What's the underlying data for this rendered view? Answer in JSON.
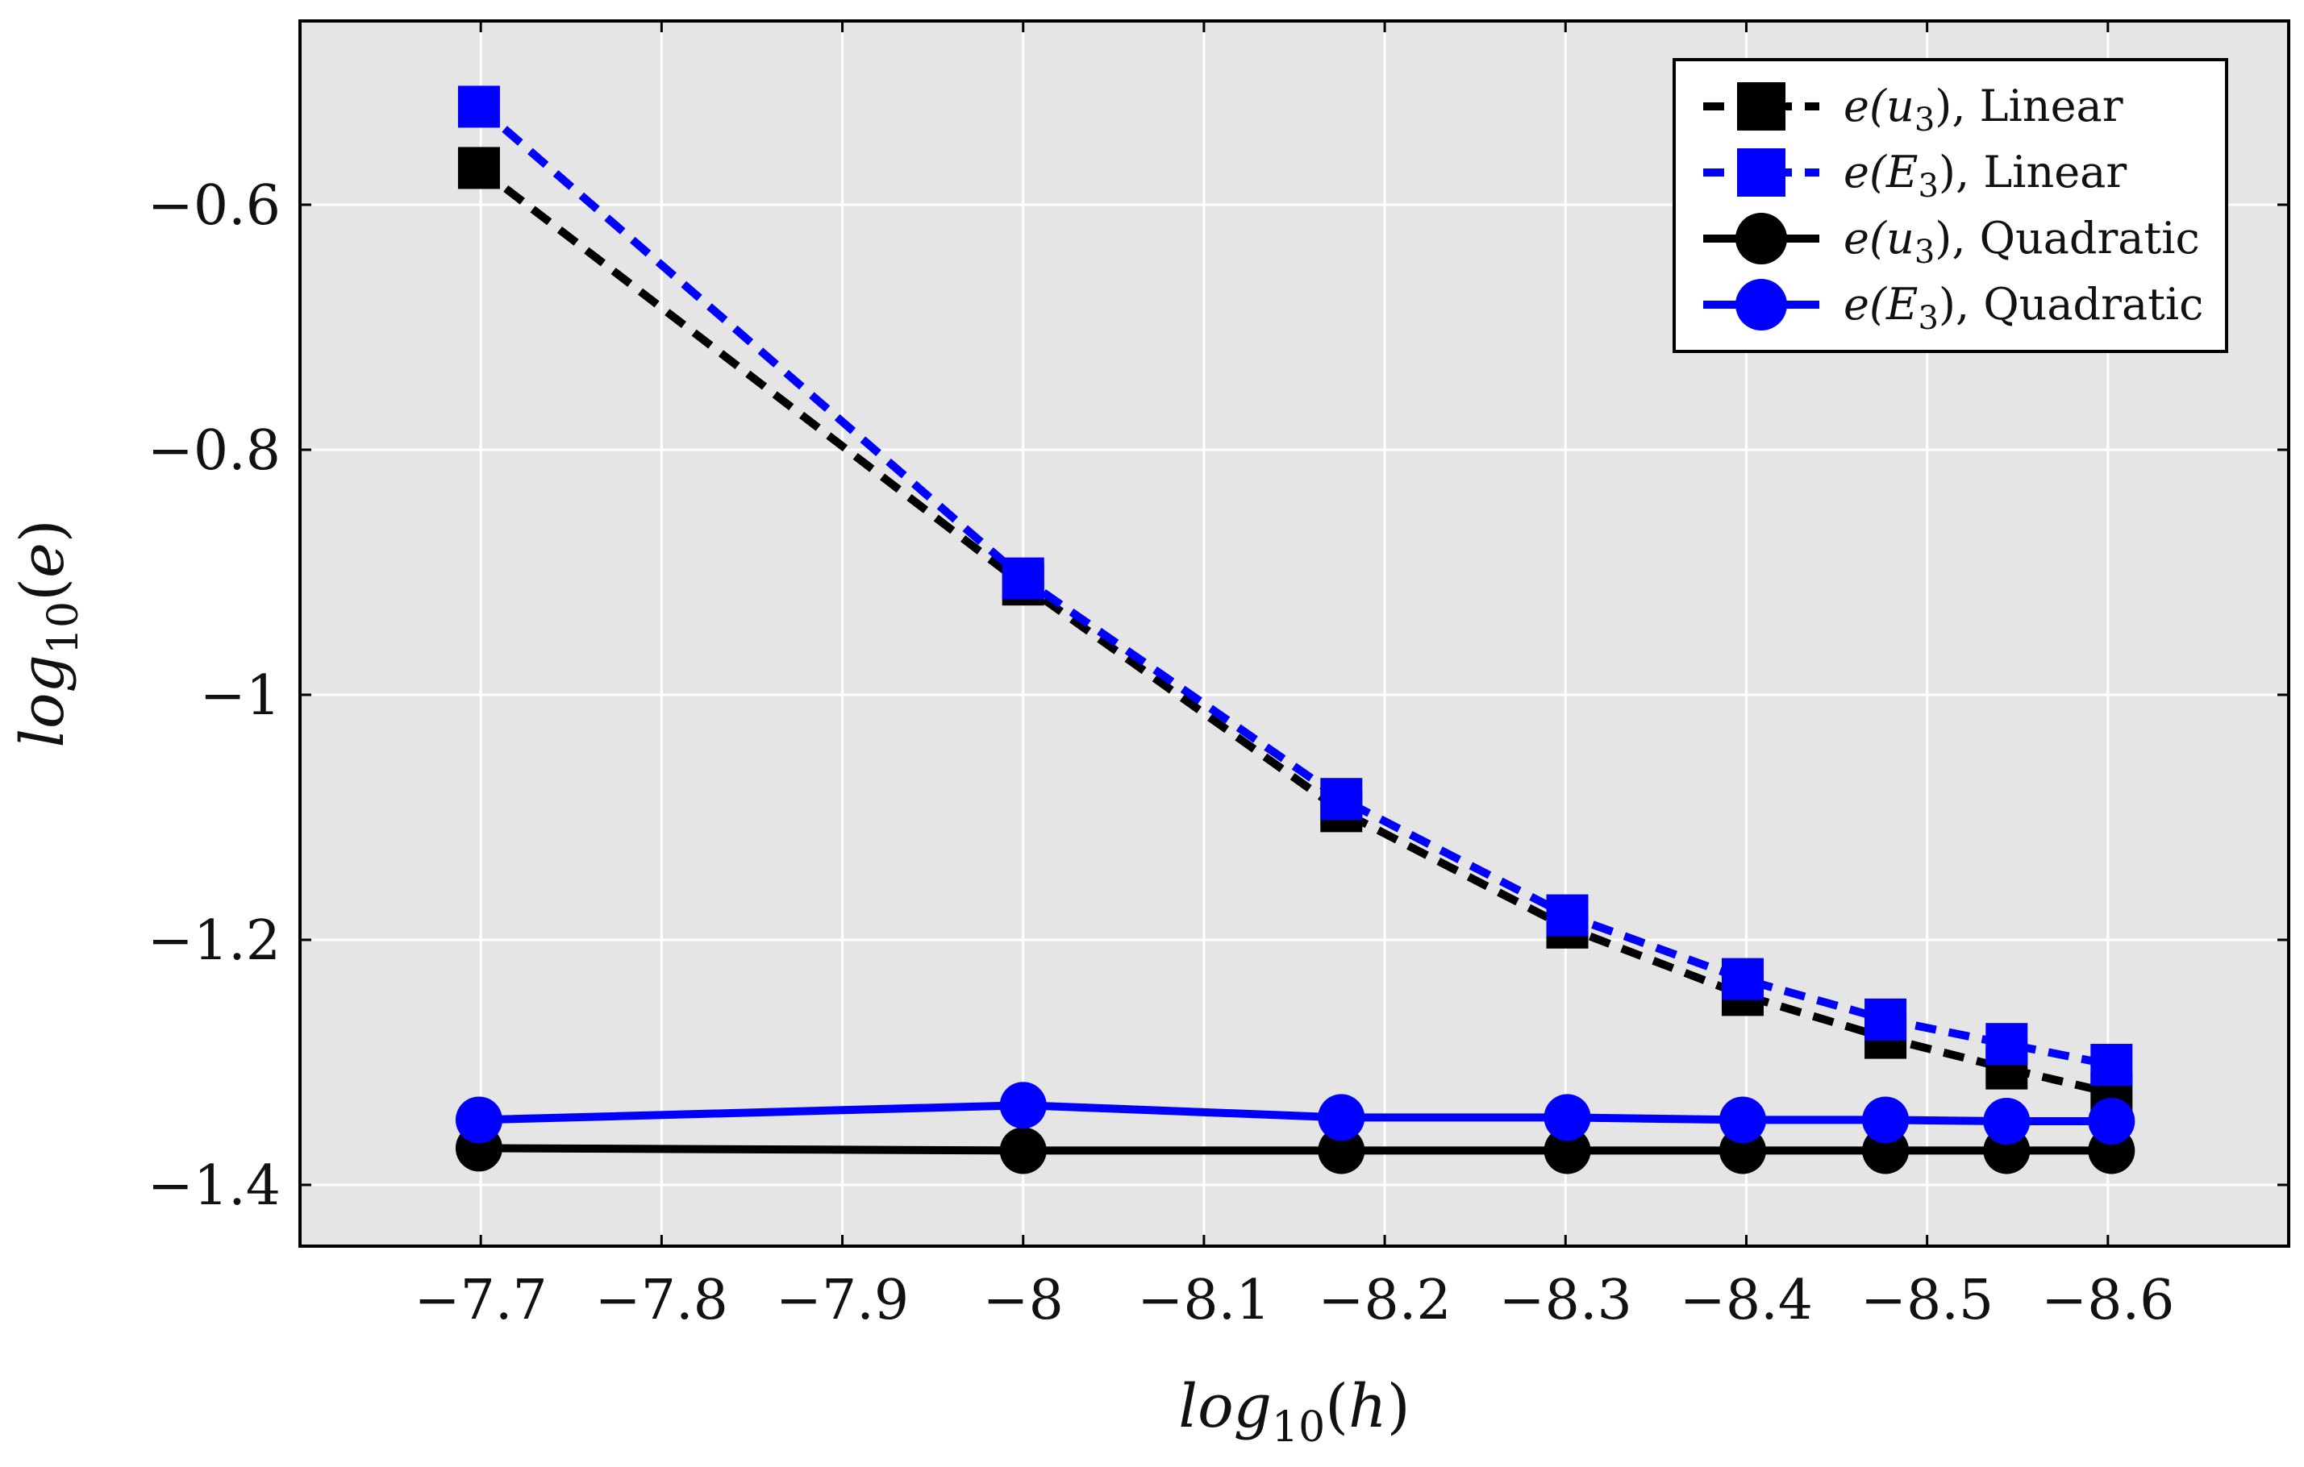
{
  "chart_data": {
    "type": "line",
    "title": "",
    "xlabel": "log10(h)",
    "ylabel": "log10(e)",
    "xlim": [
      -7.6,
      -8.7
    ],
    "ylim": [
      -1.45,
      -0.45
    ],
    "grid": true,
    "legend_position": "top-right",
    "x_ticks": [
      -7.7,
      -7.8,
      -7.9,
      -8.0,
      -8.1,
      -8.2,
      -8.3,
      -8.4,
      -8.5,
      -8.6
    ],
    "x_tick_labels": [
      "−7.7",
      "−7.8",
      "−7.9",
      "−8",
      "−8.1",
      "−8.2",
      "−8.3",
      "−8.4",
      "−8.5",
      "−8.6"
    ],
    "y_ticks": [
      -0.6,
      -0.8,
      -1.0,
      -1.2,
      -1.4
    ],
    "y_tick_labels": [
      "−0.6",
      "−0.8",
      "−1",
      "−1.2",
      "−1.4"
    ],
    "x": [
      -7.699,
      -8.0,
      -8.176,
      -8.301,
      -8.398,
      -8.477,
      -8.544,
      -8.602
    ],
    "series": [
      {
        "name": "e(u3), Linear",
        "legend_math": "e(u",
        "legend_sub": "3",
        "legend_close": ")",
        "legend_rest": ", Linear",
        "color": "#000000",
        "dashed": true,
        "marker": "square",
        "values": [
          -0.57,
          -0.91,
          -1.095,
          -1.19,
          -1.245,
          -1.28,
          -1.305,
          -1.325
        ]
      },
      {
        "name": "e(E3), Linear",
        "legend_math": "e(E",
        "legend_sub": "3",
        "legend_close": ")",
        "legend_rest": ", Linear",
        "color": "#0000ff",
        "dashed": true,
        "marker": "square",
        "values": [
          -0.52,
          -0.905,
          -1.085,
          -1.18,
          -1.232,
          -1.265,
          -1.285,
          -1.302
        ]
      },
      {
        "name": "e(u3), Quadratic",
        "legend_math": "e(u",
        "legend_sub": "3",
        "legend_close": ")",
        "legend_rest": ", Quadratic",
        "color": "#000000",
        "dashed": false,
        "marker": "circle",
        "values": [
          -1.37,
          -1.372,
          -1.372,
          -1.372,
          -1.372,
          -1.372,
          -1.372,
          -1.372
        ]
      },
      {
        "name": "e(E3), Quadratic",
        "legend_math": "e(E",
        "legend_sub": "3",
        "legend_close": ")",
        "legend_rest": ", Quadratic",
        "color": "#0000ff",
        "dashed": false,
        "marker": "circle",
        "values": [
          -1.347,
          -1.335,
          -1.345,
          -1.345,
          -1.347,
          -1.347,
          -1.348,
          -1.348
        ]
      }
    ]
  }
}
